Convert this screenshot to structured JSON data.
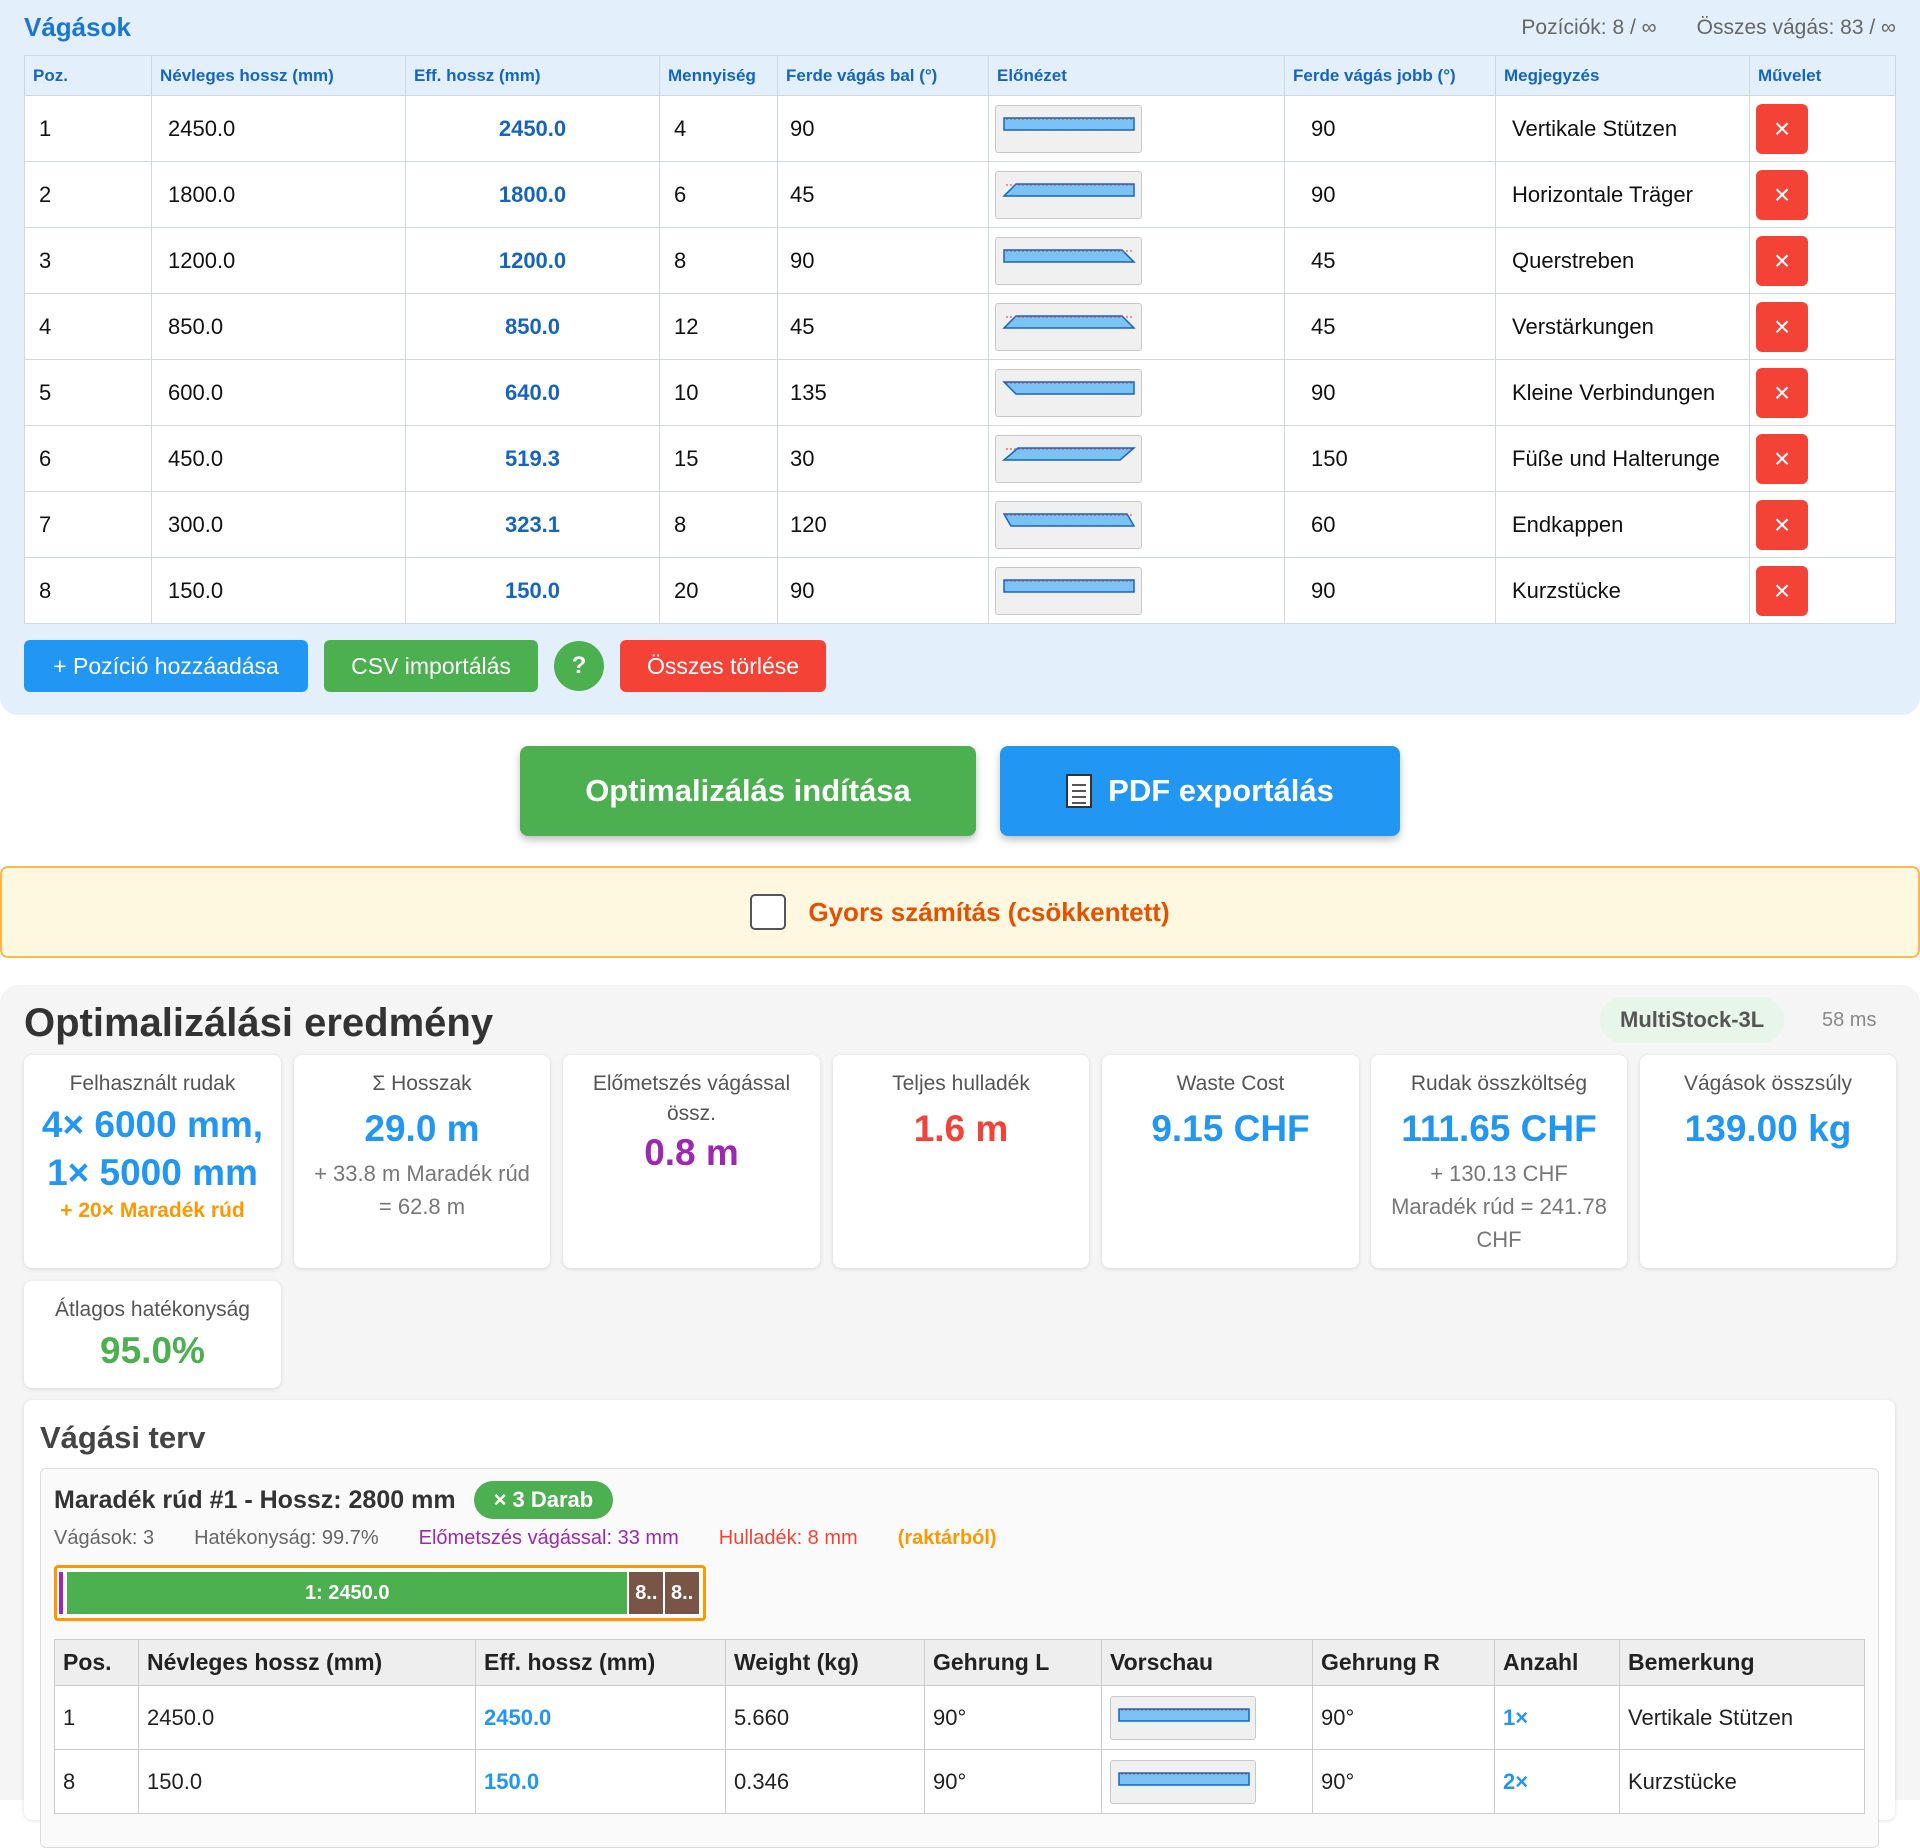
{
  "cuts": {
    "title": "Vágások",
    "positions_stat": "Pozíciók: 8 / ∞",
    "total_cuts_stat": "Összes vágás: 83 / ∞",
    "columns": [
      "Poz.",
      "Névleges hossz (mm)",
      "Eff. hossz (mm)",
      "Mennyiség",
      "Ferde vágás bal (°)",
      "Előnézet",
      "Ferde vágás jobb (°)",
      "Megjegyzés",
      "Művelet"
    ],
    "rows": [
      {
        "pos": "1",
        "nominal": "2450.0",
        "eff": "2450.0",
        "qty": "4",
        "left": "90",
        "right": "90",
        "note": "Vertikale Stützen"
      },
      {
        "pos": "2",
        "nominal": "1800.0",
        "eff": "1800.0",
        "qty": "6",
        "left": "45",
        "right": "90",
        "note": "Horizontale Träger"
      },
      {
        "pos": "3",
        "nominal": "1200.0",
        "eff": "1200.0",
        "qty": "8",
        "left": "90",
        "right": "45",
        "note": "Querstreben"
      },
      {
        "pos": "4",
        "nominal": "850.0",
        "eff": "850.0",
        "qty": "12",
        "left": "45",
        "right": "45",
        "note": "Verstärkungen"
      },
      {
        "pos": "5",
        "nominal": "600.0",
        "eff": "640.0",
        "qty": "10",
        "left": "135",
        "right": "90",
        "note": "Kleine Verbindungen"
      },
      {
        "pos": "6",
        "nominal": "450.0",
        "eff": "519.3",
        "qty": "15",
        "left": "30",
        "right": "150",
        "note": "Füße und Halterunge"
      },
      {
        "pos": "7",
        "nominal": "300.0",
        "eff": "323.1",
        "qty": "8",
        "left": "120",
        "right": "60",
        "note": "Endkappen"
      },
      {
        "pos": "8",
        "nominal": "150.0",
        "eff": "150.0",
        "qty": "20",
        "left": "90",
        "right": "90",
        "note": "Kurzstücke"
      }
    ],
    "delete_icon": "×",
    "add_button": "+ Pozíció hozzáadása",
    "csv_button": "CSV importálás",
    "help_button": "?",
    "clear_button": "Összes törlése"
  },
  "actions": {
    "optimize_button": "Optimalizálás indítása",
    "pdf_button": "PDF exportálás",
    "pdf_icon": "document-icon",
    "quick_calc_label": "Gyors számítás (csökkentett)"
  },
  "results": {
    "title": "Optimalizálási eredmény",
    "algorithm": "MultiStock-3L",
    "time": "58 ms",
    "cards": {
      "used_bars": {
        "label": "Felhasznált rudak",
        "value_line1": "4× 6000 mm,",
        "value_line2": "1× 5000 mm",
        "extra": "+ 20× Maradék rúd"
      },
      "sum_length": {
        "label": "Σ Hosszak",
        "value": "29.0 m",
        "sub": "+ 33.8 m Maradék rúd = 62.8 m"
      },
      "precut": {
        "label": "Előmetszés vágással össz.",
        "value": "0.8 m"
      },
      "waste": {
        "label": "Teljes hulladék",
        "value": "1.6 m"
      },
      "waste_cost": {
        "label": "Waste Cost",
        "value": "9.15 CHF"
      },
      "bar_cost": {
        "label": "Rudak összköltség",
        "value": "111.65 CHF",
        "sub": "+ 130.13 CHF Maradék rúd = 241.78 CHF"
      },
      "weight": {
        "label": "Vágások összsúly",
        "value": "139.00 kg"
      },
      "efficiency": {
        "label": "Átlagos hatékonyság",
        "value": "95.0%"
      }
    },
    "plan": {
      "title": "Vágási terv",
      "stock_title": "Maradék rúd #1 - Hossz: 2800 mm",
      "pieces_badge": "× 3 Darab",
      "meta": {
        "cuts": "Vágások: 3",
        "efficiency": "Hatékonyság: 99.7%",
        "precut": "Előmetszés vágással: 33 mm",
        "waste": "Hulladék: 8 mm",
        "source": "(raktárból)"
      },
      "bar_segments": [
        "1: 2450.0",
        "8..",
        "8.."
      ],
      "table_columns": [
        "Pos.",
        "Névleges hossz (mm)",
        "Eff. hossz (mm)",
        "Weight (kg)",
        "Gehrung L",
        "Vorschau",
        "Gehrung R",
        "Anzahl",
        "Bemerkung"
      ],
      "table_rows": [
        {
          "pos": "1",
          "nominal": "2450.0",
          "eff": "2450.0",
          "weight": "5.660",
          "gl": "90°",
          "gr": "90°",
          "count": "1×",
          "note": "Vertikale Stützen"
        },
        {
          "pos": "8",
          "nominal": "150.0",
          "eff": "150.0",
          "weight": "0.346",
          "gl": "90°",
          "gr": "90°",
          "count": "2×",
          "note": "Kurzstücke"
        }
      ]
    }
  }
}
